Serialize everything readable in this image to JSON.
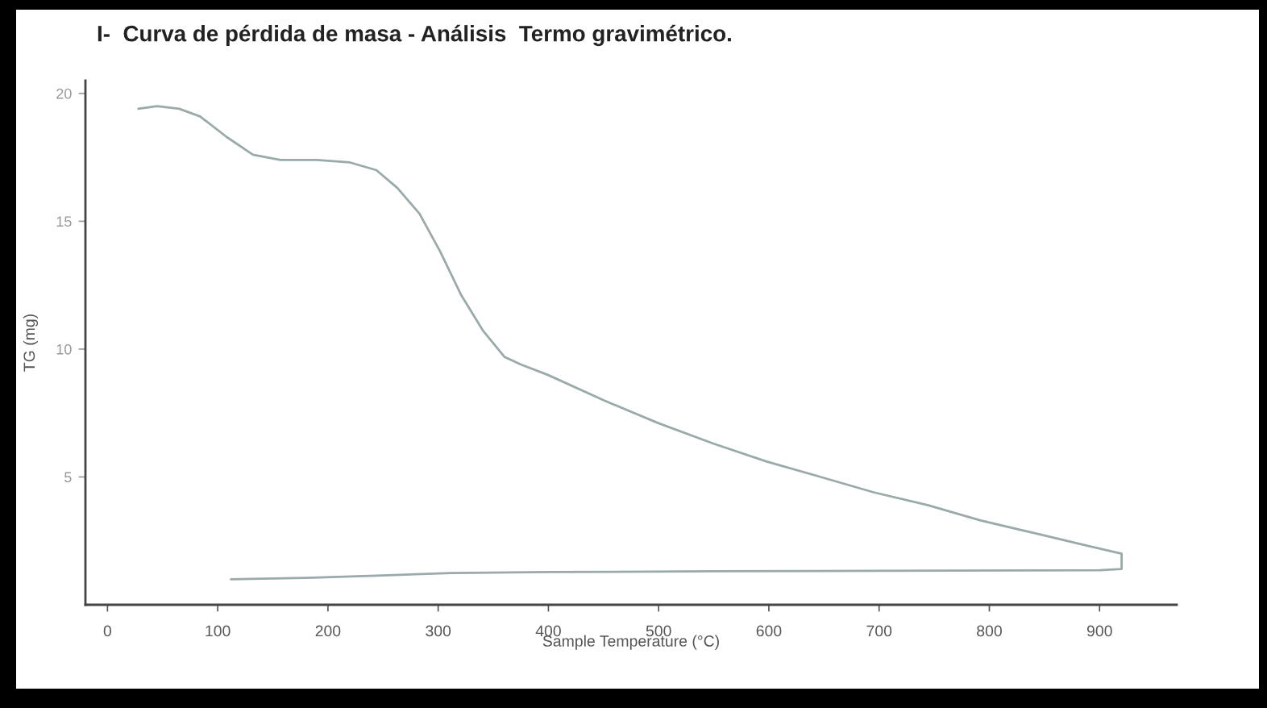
{
  "chart_data": {
    "type": "line",
    "title": "I-  Curva de pérdida de masa - Análisis  Termo gravimétrico.",
    "xlabel": "Sample Temperature (°C)",
    "ylabel": "TG (mg)",
    "x": [
      28,
      45,
      65,
      84,
      108,
      132,
      157,
      190,
      220,
      244,
      263,
      283,
      302,
      321,
      341,
      360,
      375,
      399,
      450,
      500,
      550,
      598,
      647,
      695,
      744,
      792,
      841,
      890,
      920,
      920,
      900,
      700,
      555,
      400,
      312,
      244,
      180,
      112
    ],
    "values": [
      19.4,
      19.5,
      19.4,
      19.1,
      18.3,
      17.6,
      17.4,
      17.4,
      17.3,
      17.0,
      16.3,
      15.3,
      13.8,
      12.1,
      10.7,
      9.7,
      9.4,
      9.0,
      8.0,
      7.1,
      6.3,
      5.6,
      5.0,
      4.4,
      3.9,
      3.3,
      2.8,
      2.3,
      2.0,
      1.4,
      1.35,
      1.33,
      1.31,
      1.28,
      1.24,
      1.14,
      1.05,
      1.0
    ],
    "color": "#9aa9a9",
    "xlim": [
      -20,
      970
    ],
    "ylim": [
      0,
      20.5
    ],
    "xticks": [
      0,
      100,
      200,
      300,
      400,
      500,
      600,
      700,
      800,
      900
    ],
    "yticks": [
      5,
      10,
      15,
      20
    ]
  }
}
